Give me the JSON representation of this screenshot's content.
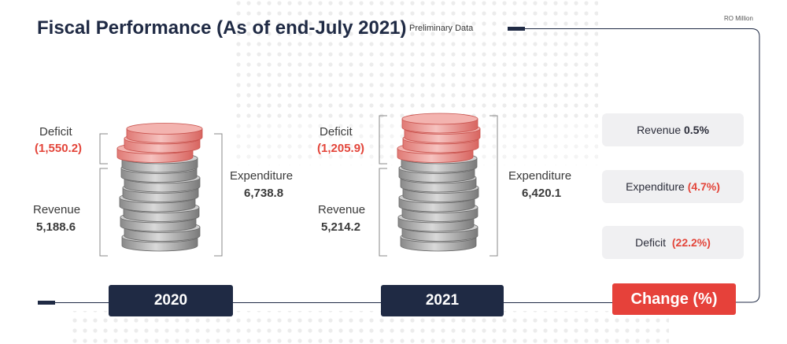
{
  "header": {
    "title": "Fiscal Performance (As of end-July 2021)",
    "preliminary": "Preliminary Data",
    "unit": "RO Million"
  },
  "years": [
    {
      "label": "2020",
      "deficit_label": "Deficit",
      "deficit_value": "(1,550.2)",
      "revenue_label": "Revenue",
      "revenue_value": "5,188.6",
      "expenditure_label": "Expenditure",
      "expenditure_value": "6,738.8"
    },
    {
      "label": "2021",
      "deficit_label": "Deficit",
      "deficit_value": "(1,205.9)",
      "revenue_label": "Revenue",
      "revenue_value": "5,214.2",
      "expenditure_label": "Expenditure",
      "expenditure_value": "6,420.1"
    }
  ],
  "change": {
    "label": "Change (%)",
    "items": [
      {
        "name": "Revenue",
        "value": "0.5%",
        "negative": false
      },
      {
        "name": "Expenditure",
        "value": "(4.7%)",
        "negative": true
      },
      {
        "name": "Deficit",
        "value": "(22.2%)",
        "negative": true
      }
    ]
  },
  "colors": {
    "navy": "#1f2a44",
    "red": "#e6413a",
    "coin_gray": "#9a9a9a",
    "coin_red": "#e88f8b"
  }
}
